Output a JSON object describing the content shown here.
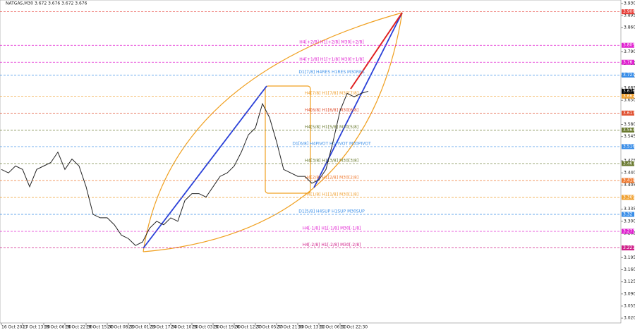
{
  "chart_data": {
    "type": "line",
    "title": "NATGAS,M30 3.672 3.676 3.672 3.676",
    "categories": [
      "16 Oct 2023",
      null,
      null,
      "17 Oct 13:30",
      null,
      null,
      "18 Oct 06:30",
      null,
      null,
      "18 Oct 22:30",
      null,
      null,
      "19 Oct 15:30",
      null,
      null,
      "20 Oct 08:30",
      null,
      null,
      "23 Oct 01:30",
      null,
      null,
      "23 Oct 17:30",
      null,
      null,
      "24 Oct 10:30",
      null,
      null,
      "25 Oct 03:30",
      null,
      null,
      "25 Oct 19:30",
      null,
      null,
      "26 Oct 12:30",
      null,
      null,
      "27 Oct 05:30",
      null,
      null,
      "27 Oct 21:30",
      null,
      null,
      "30 Oct 13:30",
      null,
      null,
      "31 Oct 06:30",
      null,
      null,
      "31 Oct 22:30",
      null,
      null,
      null,
      null
    ],
    "series": [
      {
        "color": "#222222",
        "values": [
          3.45,
          3.44,
          3.46,
          3.45,
          3.4,
          3.45,
          3.46,
          3.47,
          3.5,
          3.45,
          3.48,
          3.46,
          3.4,
          3.32,
          3.31,
          3.31,
          3.29,
          3.26,
          3.25,
          3.23,
          3.24,
          3.28,
          3.3,
          3.29,
          3.31,
          3.3,
          3.36,
          3.38,
          3.38,
          3.37,
          3.4,
          3.43,
          3.44,
          3.46,
          3.5,
          3.55,
          3.57,
          3.64,
          3.6,
          3.53,
          3.45,
          3.44,
          3.43,
          3.43,
          3.41,
          3.42,
          3.45,
          3.53,
          3.62,
          3.67,
          3.66,
          3.67,
          3.676
        ]
      }
    ],
    "ylim": [
      3.006,
      3.94
    ],
    "yticks": [
      {
        "value": 3.93,
        "label": "3.930"
      },
      3.895,
      {
        "value": 3.86,
        "label": "3.860"
      },
      {
        "value": 3.79,
        "label": "3.790"
      },
      3.755,
      {
        "value": 3.72,
        "label": "3.720"
      },
      3.685,
      {
        "value": 3.65,
        "label": "3.650"
      },
      {
        "value": 3.58,
        "label": "3.580"
      },
      3.545,
      3.475,
      {
        "value": 3.44,
        "label": "3.440"
      },
      3.405,
      3.335,
      {
        "value": 3.3,
        "label": "3.300"
      },
      3.265,
      3.195,
      {
        "value": 3.16,
        "label": "3.160"
      },
      3.125,
      {
        "value": 3.09,
        "label": "3.090"
      },
      3.055,
      {
        "value": 3.02,
        "label": "3.020"
      }
    ],
    "grid": false,
    "levels": [
      {
        "value": 3.906,
        "color": "#e8403a"
      },
      {
        "value": 3.809,
        "color": "#e020d0",
        "name": "H4[+2/8] H1[+2/8] M30[+2/8]"
      },
      {
        "value": 3.76,
        "color": "#e020d0",
        "name": "H4[+1/8] H1[+1/8] M30[+1/8]"
      },
      {
        "value": 3.723,
        "color": "#3a8ee8",
        "name": "D1[7/8] H4RES H1RES M30RES"
      },
      {
        "value": 3.662,
        "color": "#f0a030",
        "name": "H4[7/8] H1[7/8] M30[7/8]"
      },
      {
        "value": 3.613,
        "color": "#e05030",
        "name": "H4[6/8] H1[6/8] M30[6/8]"
      },
      {
        "value": 3.564,
        "color": "#6a7a30",
        "name": "H4[5/8] H1[5/8] M30[5/8]"
      },
      {
        "value": 3.516,
        "color": "#3a8ee8",
        "name": "D1[6/8] H4PIVOT H1PIVOT M30PIVOT"
      },
      {
        "value": 3.467,
        "color": "#6a7a30",
        "name": "H4[3/8] H1[3/8] M30[3/8]"
      },
      {
        "value": 3.418,
        "color": "#f07a30",
        "name": "H4[2/8] H1[2/8] M30[2/8]"
      },
      {
        "value": 3.369,
        "color": "#f0a030",
        "name": "H4[1/8] H1[1/8] M30[1/8]"
      },
      {
        "value": 3.32,
        "color": "#3a8ee8",
        "name": "D1[5/8] H4SUP H1SUP M30SUP"
      },
      {
        "value": 3.271,
        "color": "#e020d0",
        "name": "H4[-1/8] H1[-1/8] M30[-1/8]"
      },
      {
        "value": 3.223,
        "color": "#d0208a",
        "name": "H4[-2/8] H1[-2/8] M30[-2/8]"
      }
    ],
    "last_price": 3.676
  }
}
